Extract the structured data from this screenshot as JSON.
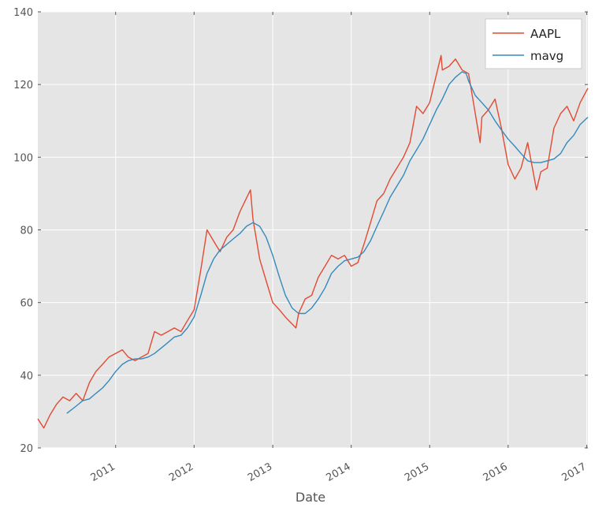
{
  "chart_data": {
    "type": "line",
    "title": "",
    "xlabel": "Date",
    "ylabel": "",
    "xlim": [
      "2010-01-04",
      "2017-01-06"
    ],
    "ylim": [
      20,
      140
    ],
    "grid": true,
    "legend_position": "top-right",
    "x_ticks": [
      "2011",
      "2012",
      "2013",
      "2014",
      "2015",
      "2016",
      "2017"
    ],
    "y_ticks": [
      20,
      40,
      60,
      80,
      100,
      120,
      140
    ],
    "series": [
      {
        "name": "AAPL",
        "color": "#e24a33",
        "x": [
          "2010-01-04",
          "2010-02-01",
          "2010-03-01",
          "2010-04-01",
          "2010-05-01",
          "2010-06-01",
          "2010-07-01",
          "2010-08-01",
          "2010-09-01",
          "2010-10-01",
          "2010-11-01",
          "2010-12-01",
          "2011-01-01",
          "2011-02-01",
          "2011-03-01",
          "2011-04-01",
          "2011-05-01",
          "2011-06-01",
          "2011-07-01",
          "2011-08-01",
          "2011-09-01",
          "2011-10-01",
          "2011-11-01",
          "2011-12-01",
          "2012-01-01",
          "2012-02-01",
          "2012-03-01",
          "2012-04-10",
          "2012-05-01",
          "2012-06-01",
          "2012-07-01",
          "2012-08-01",
          "2012-09-19",
          "2012-10-01",
          "2012-11-01",
          "2012-12-01",
          "2013-01-01",
          "2013-02-01",
          "2013-03-01",
          "2013-04-19",
          "2013-05-01",
          "2013-06-01",
          "2013-07-01",
          "2013-08-01",
          "2013-09-01",
          "2013-10-01",
          "2013-11-01",
          "2013-12-01",
          "2014-01-01",
          "2014-02-01",
          "2014-03-01",
          "2014-04-01",
          "2014-05-01",
          "2014-06-01",
          "2014-07-01",
          "2014-08-01",
          "2014-09-01",
          "2014-10-01",
          "2014-11-01",
          "2014-12-01",
          "2015-01-01",
          "2015-02-23",
          "2015-03-01",
          "2015-04-01",
          "2015-05-01",
          "2015-06-01",
          "2015-07-01",
          "2015-08-24",
          "2015-09-01",
          "2015-10-01",
          "2015-11-01",
          "2015-12-01",
          "2016-01-01",
          "2016-02-01",
          "2016-03-01",
          "2016-04-01",
          "2016-05-12",
          "2016-06-01",
          "2016-07-01",
          "2016-08-01",
          "2016-09-01",
          "2016-10-01",
          "2016-11-01",
          "2016-12-01",
          "2017-01-06"
        ],
        "values": [
          28,
          25.5,
          29,
          32,
          34,
          33,
          35,
          33,
          38,
          41,
          43,
          45,
          46,
          47,
          45,
          44,
          45,
          46,
          52,
          51,
          52,
          53,
          52,
          55,
          58,
          69,
          80,
          76,
          74,
          78,
          80,
          85,
          91,
          83,
          72,
          66,
          60,
          58,
          56,
          53,
          57,
          61,
          62,
          67,
          70,
          73,
          72,
          73,
          70,
          71,
          76,
          82,
          88,
          90,
          94,
          97,
          100,
          104,
          114,
          112,
          115,
          128,
          124,
          125,
          127,
          124,
          123,
          104,
          111,
          113,
          116,
          108,
          98,
          94,
          97,
          104,
          91,
          96,
          97,
          108,
          112,
          114,
          110,
          115,
          119
        ]
      },
      {
        "name": "mavg",
        "color": "#348abd",
        "x": [
          "2010-05-19",
          "2010-07-01",
          "2010-08-01",
          "2010-09-01",
          "2010-10-01",
          "2010-11-01",
          "2010-12-01",
          "2011-01-01",
          "2011-02-01",
          "2011-03-01",
          "2011-04-01",
          "2011-05-01",
          "2011-06-01",
          "2011-07-01",
          "2011-08-01",
          "2011-09-01",
          "2011-10-01",
          "2011-11-01",
          "2011-12-01",
          "2012-01-01",
          "2012-02-01",
          "2012-03-01",
          "2012-04-01",
          "2012-05-01",
          "2012-06-01",
          "2012-07-01",
          "2012-08-01",
          "2012-09-01",
          "2012-10-01",
          "2012-11-01",
          "2012-12-01",
          "2013-01-01",
          "2013-02-01",
          "2013-03-01",
          "2013-04-01",
          "2013-05-01",
          "2013-06-01",
          "2013-07-01",
          "2013-08-01",
          "2013-09-01",
          "2013-10-01",
          "2013-11-01",
          "2013-12-01",
          "2014-01-01",
          "2014-02-01",
          "2014-03-01",
          "2014-04-01",
          "2014-05-01",
          "2014-06-01",
          "2014-07-01",
          "2014-08-01",
          "2014-09-01",
          "2014-10-01",
          "2014-11-01",
          "2014-12-01",
          "2015-01-01",
          "2015-02-01",
          "2015-03-01",
          "2015-04-01",
          "2015-05-01",
          "2015-06-01",
          "2015-06-20",
          "2015-07-01",
          "2015-08-01",
          "2015-09-01",
          "2015-10-01",
          "2015-11-01",
          "2015-12-01",
          "2016-01-01",
          "2016-02-01",
          "2016-03-01",
          "2016-04-01",
          "2016-05-01",
          "2016-06-01",
          "2016-07-01",
          "2016-08-01",
          "2016-09-01",
          "2016-10-01",
          "2016-11-01",
          "2016-12-01",
          "2017-01-06"
        ],
        "values": [
          29.5,
          31.5,
          33,
          33.5,
          35,
          36.5,
          38.5,
          41,
          43,
          44,
          44.5,
          44.5,
          45,
          46,
          47.5,
          49,
          50.5,
          51,
          53,
          56,
          62,
          68,
          72,
          74.5,
          76,
          77.5,
          79,
          81,
          82,
          81,
          78,
          73,
          67,
          62,
          58.5,
          57,
          57,
          58.5,
          61,
          64,
          68,
          70,
          71.5,
          72,
          72.5,
          74,
          77,
          81,
          85,
          89,
          92,
          95,
          99,
          102,
          105,
          109,
          113,
          116,
          120,
          122,
          123.5,
          123,
          121,
          117,
          115,
          113,
          110,
          107.5,
          105,
          103,
          101,
          99,
          98.5,
          98.5,
          99,
          99.5,
          101,
          104,
          106,
          109,
          111
        ]
      }
    ]
  }
}
